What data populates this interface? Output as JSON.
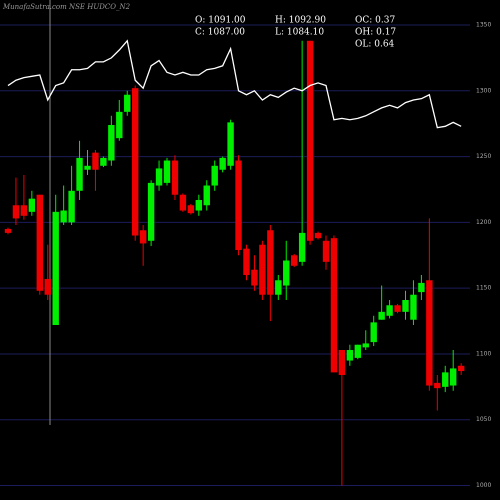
{
  "chart_data": {
    "type": "candlestick",
    "title": "MunafaSutra.com NSE HUDCO_N2",
    "info": [
      "O: 1091.00",
      "H: 1092.90",
      "OC: 0.37",
      "C: 1087.00",
      "L: 1084.10",
      "OH: 0.17",
      "OL: 0.64"
    ],
    "open": [
      1195,
      1213,
      1213,
      1208,
      1221,
      1157,
      1122,
      1200,
      1200,
      1224,
      1240,
      1253,
      1243,
      1247,
      1264,
      1284,
      1302,
      1194,
      1186,
      1228,
      1230,
      1247,
      1221,
      1213,
      1209,
      1213,
      1228,
      1240,
      1243,
      1247,
      1180,
      1164,
      1183,
      1194,
      1145,
      1152,
      1175,
      1170,
      1338,
      1192,
      1186,
      1188,
      1103,
      1095,
      1097,
      1105,
      1109,
      1126,
      1129,
      1137,
      1132,
      1126,
      1147,
      1156,
      1078,
      1075,
      1076,
      1091
    ],
    "high": [
      1196,
      1234,
      1236,
      1224,
      1221,
      1183,
      1221,
      1228,
      1243,
      1262,
      1255,
      1255,
      1250,
      1281,
      1293,
      1300,
      1304,
      1198,
      1232,
      1247,
      1249,
      1251,
      1222,
      1214,
      1221,
      1232,
      1247,
      1250,
      1278,
      1251,
      1183,
      1175,
      1186,
      1198,
      1160,
      1186,
      1176,
      1338,
      1338,
      1193,
      1190,
      1190,
      1103,
      1107,
      1107,
      1118,
      1129,
      1152,
      1141,
      1138,
      1148,
      1156,
      1160,
      1203,
      1084,
      1091,
      1103,
      1093
    ],
    "low": [
      1191,
      1198,
      1202,
      1205,
      1145,
      1141,
      1122,
      1198,
      1198,
      1217,
      1236,
      1224,
      1242,
      1243,
      1262,
      1281,
      1186,
      1167,
      1182,
      1224,
      1228,
      1217,
      1208,
      1206,
      1205,
      1209,
      1224,
      1238,
      1240,
      1175,
      1156,
      1148,
      1141,
      1125,
      1141,
      1141,
      1166,
      1167,
      1183,
      1187,
      1164,
      1086,
      1000,
      1091,
      1096,
      1103,
      1106,
      1126,
      1127,
      1131,
      1126,
      1122,
      1141,
      1072,
      1057,
      1071,
      1072,
      1084
    ],
    "close": [
      1192,
      1203,
      1205,
      1218,
      1148,
      1145,
      1208,
      1209,
      1224,
      1249,
      1243,
      1240,
      1249,
      1274,
      1284,
      1297,
      1190,
      1184,
      1230,
      1241,
      1247,
      1221,
      1209,
      1207,
      1217,
      1228,
      1243,
      1249,
      1276,
      1179,
      1160,
      1152,
      1145,
      1145,
      1156,
      1171,
      1167,
      1192,
      1186,
      1188,
      1170,
      1086,
      1084,
      1103,
      1107,
      1108,
      1124,
      1132,
      1137,
      1132,
      1141,
      1145,
      1154,
      1076,
      1074,
      1086,
      1089,
      1087
    ],
    "line": {
      "color": "#ffffff",
      "values": [
        1304,
        1308,
        1310,
        1311,
        1312,
        1293,
        1304,
        1306,
        1316,
        1316,
        1317,
        1322,
        1322,
        1325,
        1331,
        1338,
        1308,
        1302,
        1319,
        1323,
        1314,
        1312,
        1314,
        1312,
        1312,
        1316,
        1317,
        1319,
        1332,
        1300,
        1297,
        1300,
        1293,
        1297,
        1295,
        1299,
        1302,
        1300,
        1304,
        1306,
        1304,
        1278,
        1279,
        1278,
        1279,
        1281,
        1284,
        1287,
        1289,
        1287,
        1291,
        1293,
        1294,
        1297,
        1272,
        1273,
        1276,
        1273
      ]
    },
    "up_color": "#00ee00",
    "down_color": "#ee0000",
    "ylim": [
      989,
      1369
    ],
    "yticks": [
      1000,
      1050,
      1100,
      1150,
      1200,
      1250,
      1300,
      1350
    ],
    "grid": true
  }
}
